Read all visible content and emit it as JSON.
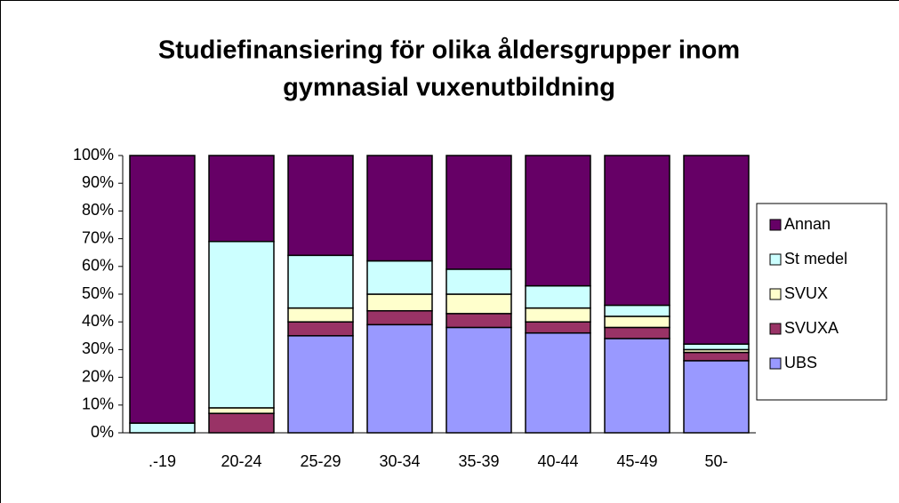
{
  "chart_data": {
    "type": "bar",
    "stacked": true,
    "title": [
      "Studiefinansiering för olika åldersgrupper inom",
      "gymnasial vuxenutbildning"
    ],
    "categories": [
      ".-19",
      "20-24",
      "25-29",
      "30-34",
      "35-39",
      "40-44",
      "45-49",
      "50-"
    ],
    "series": [
      {
        "name": "UBS",
        "color": "#9999ff",
        "values": [
          0,
          0,
          35,
          39,
          38,
          36,
          34,
          26
        ]
      },
      {
        "name": "SVUXA",
        "color": "#993366",
        "values": [
          0,
          7,
          5,
          5,
          5,
          4,
          4,
          3
        ]
      },
      {
        "name": "SVUX",
        "color": "#ffffcc",
        "values": [
          0,
          2,
          5,
          6,
          7,
          5,
          4,
          1
        ]
      },
      {
        "name": "St medel",
        "color": "#ccffff",
        "values": [
          3.5,
          60,
          19,
          12,
          9,
          8,
          4,
          2
        ]
      },
      {
        "name": "Annan",
        "color": "#660066",
        "values": [
          96.5,
          31,
          36,
          38,
          41,
          47,
          54,
          68
        ]
      }
    ],
    "ylim": [
      0,
      100
    ],
    "yticks": [
      {
        "value": 0,
        "label": "0%"
      },
      {
        "value": 10,
        "label": "10%"
      },
      {
        "value": 20,
        "label": "20%"
      },
      {
        "value": 30,
        "label": "30%"
      },
      {
        "value": 40,
        "label": "40%"
      },
      {
        "value": 50,
        "label": "50%"
      },
      {
        "value": 60,
        "label": "60%"
      },
      {
        "value": 70,
        "label": "70%"
      },
      {
        "value": 80,
        "label": "80%"
      },
      {
        "value": 90,
        "label": "90%"
      },
      {
        "value": 100,
        "label": "100%"
      }
    ],
    "legend": "right"
  }
}
